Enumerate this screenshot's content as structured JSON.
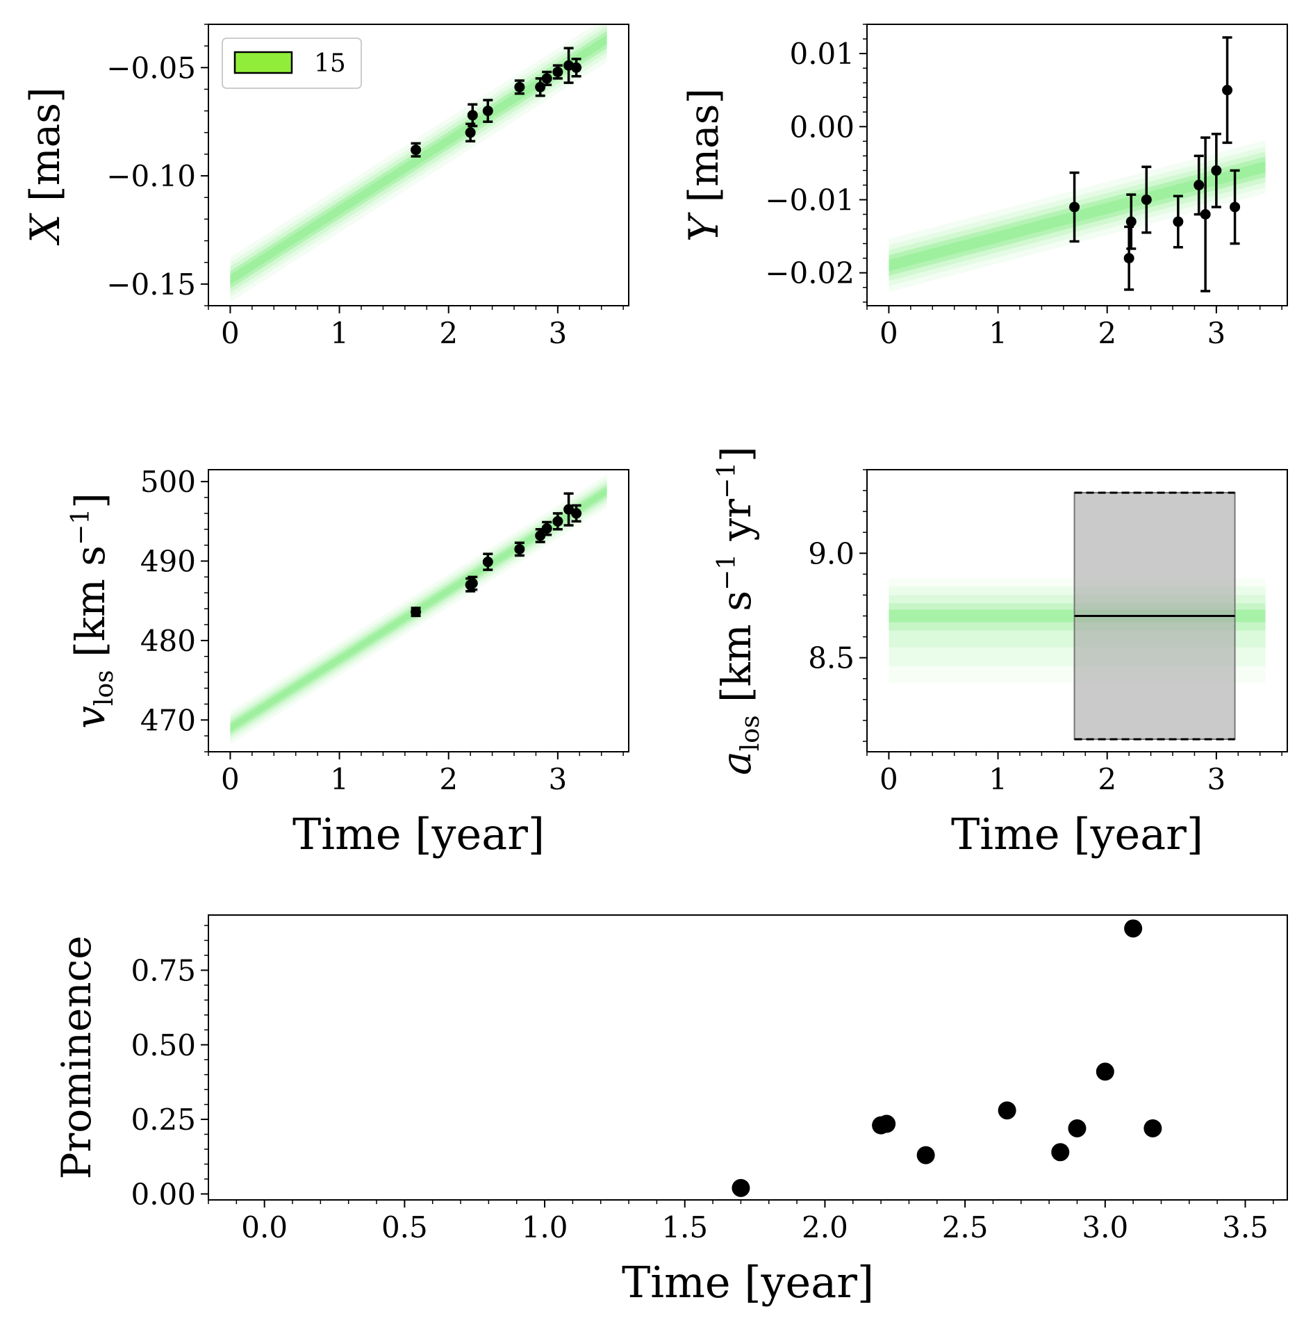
{
  "chart_data": [
    {
      "id": "x",
      "type": "scatter",
      "ylabel_main": "X",
      "ylabel_unit": "[mas]",
      "xlabel": "",
      "xlim": [
        -0.2,
        3.65
      ],
      "ylim": [
        -0.16,
        -0.03
      ],
      "xticks": [
        "0",
        "1",
        "2",
        "3"
      ],
      "yticks": [
        "−0.05",
        "−0.10",
        "−0.15"
      ],
      "band": {
        "x0": 0,
        "y0": -0.148,
        "x1": 3.45,
        "y1": -0.037,
        "halfwidth": 0.004
      },
      "points": [
        {
          "x": 1.7,
          "y": -0.088,
          "err": 0.003
        },
        {
          "x": 2.2,
          "y": -0.08,
          "err": 0.004
        },
        {
          "x": 2.22,
          "y": -0.072,
          "err": 0.005
        },
        {
          "x": 2.36,
          "y": -0.07,
          "err": 0.005
        },
        {
          "x": 2.65,
          "y": -0.059,
          "err": 0.003
        },
        {
          "x": 2.84,
          "y": -0.059,
          "err": 0.004
        },
        {
          "x": 2.9,
          "y": -0.055,
          "err": 0.003
        },
        {
          "x": 3.0,
          "y": -0.052,
          "err": 0.003
        },
        {
          "x": 3.1,
          "y": -0.049,
          "err": 0.008
        },
        {
          "x": 3.17,
          "y": -0.05,
          "err": 0.004
        }
      ],
      "legend": {
        "label": "15",
        "color": "#90ee3a"
      }
    },
    {
      "id": "y",
      "type": "scatter",
      "ylabel_main": "Y",
      "ylabel_unit": "[mas]",
      "xlabel": "",
      "xlim": [
        -0.2,
        3.65
      ],
      "ylim": [
        -0.0245,
        0.014
      ],
      "xticks": [
        "0",
        "1",
        "2",
        "3"
      ],
      "yticks": [
        "0.01",
        "0.00",
        "−0.01",
        "−0.02"
      ],
      "band": {
        "x0": 0,
        "y0": -0.019,
        "x1": 3.45,
        "y1": -0.0055,
        "halfwidth": 0.0014
      },
      "points": [
        {
          "x": 1.7,
          "y": -0.011,
          "err": 0.0047
        },
        {
          "x": 2.2,
          "y": -0.018,
          "err": 0.0043
        },
        {
          "x": 2.22,
          "y": -0.013,
          "err": 0.0037
        },
        {
          "x": 2.36,
          "y": -0.01,
          "err": 0.0045
        },
        {
          "x": 2.65,
          "y": -0.013,
          "err": 0.0035
        },
        {
          "x": 2.84,
          "y": -0.008,
          "err": 0.004
        },
        {
          "x": 2.9,
          "y": -0.012,
          "err": 0.0105
        },
        {
          "x": 3.0,
          "y": -0.006,
          "err": 0.005
        },
        {
          "x": 3.1,
          "y": 0.005,
          "err": 0.0072
        },
        {
          "x": 3.17,
          "y": -0.011,
          "err": 0.005
        }
      ]
    },
    {
      "id": "v",
      "type": "scatter",
      "ylabel_main": "v",
      "ylabel_sub": "los",
      "ylabel_unit_a": "[km s",
      "ylabel_unit_sup": "−1",
      "ylabel_unit_b": "]",
      "xlabel": "Time [year]",
      "xlim": [
        -0.2,
        3.65
      ],
      "ylim": [
        466,
        501.5
      ],
      "xticks": [
        "0",
        "1",
        "2",
        "3"
      ],
      "yticks": [
        "500",
        "490",
        "480",
        "470"
      ],
      "band": {
        "x0": 0,
        "y0": 469.0,
        "x1": 3.45,
        "y1": 498.8,
        "halfwidth": 0.8
      },
      "points": [
        {
          "x": 1.7,
          "y": 483.6,
          "err": 0.5
        },
        {
          "x": 2.2,
          "y": 487.0,
          "err": 0.8
        },
        {
          "x": 2.22,
          "y": 487.2,
          "err": 0.8
        },
        {
          "x": 2.36,
          "y": 489.9,
          "err": 1.0
        },
        {
          "x": 2.65,
          "y": 491.5,
          "err": 0.8
        },
        {
          "x": 2.84,
          "y": 493.2,
          "err": 0.8
        },
        {
          "x": 2.9,
          "y": 494.1,
          "err": 0.8
        },
        {
          "x": 3.0,
          "y": 495.0,
          "err": 1.0
        },
        {
          "x": 3.1,
          "y": 496.5,
          "err": 2.0
        },
        {
          "x": 3.17,
          "y": 496.0,
          "err": 1.0
        }
      ]
    },
    {
      "id": "a",
      "type": "area",
      "ylabel_main": "a",
      "ylabel_sub": "los",
      "ylabel_unit_a": "[km s",
      "ylabel_unit_sup1": "−1",
      "ylabel_unit_mid": " yr",
      "ylabel_unit_sup2": "−1",
      "ylabel_unit_b": "]",
      "xlabel": "Time [year]",
      "xlim": [
        -0.2,
        3.65
      ],
      "ylim": [
        8.05,
        9.4
      ],
      "xticks": [
        "0",
        "1",
        "2",
        "3"
      ],
      "yticks": [
        "9.0",
        "8.5"
      ],
      "band": {
        "x0": 0,
        "y0": 8.7,
        "x1": 3.45,
        "y1": 8.7,
        "halfwidth": 0.03
      },
      "box": {
        "x0": 1.7,
        "x1": 3.17,
        "y_low": 8.11,
        "y_high": 9.29,
        "y_mid": 8.7
      }
    },
    {
      "id": "p",
      "type": "scatter",
      "ylabel_main": "Prominence",
      "xlabel": "Time [year]",
      "xlim": [
        -0.2,
        3.65
      ],
      "ylim": [
        -0.02,
        0.935
      ],
      "xticks": [
        "0.0",
        "0.5",
        "1.0",
        "1.5",
        "2.0",
        "2.5",
        "3.0",
        "3.5"
      ],
      "yticks": [
        "0.75",
        "0.50",
        "0.25",
        "0.00"
      ],
      "points": [
        {
          "x": 1.7,
          "y": 0.02
        },
        {
          "x": 2.2,
          "y": 0.23
        },
        {
          "x": 2.22,
          "y": 0.235
        },
        {
          "x": 2.36,
          "y": 0.13
        },
        {
          "x": 2.65,
          "y": 0.28
        },
        {
          "x": 2.84,
          "y": 0.14
        },
        {
          "x": 2.9,
          "y": 0.22
        },
        {
          "x": 3.0,
          "y": 0.41
        },
        {
          "x": 3.1,
          "y": 0.89
        },
        {
          "x": 3.17,
          "y": 0.22
        }
      ]
    }
  ]
}
